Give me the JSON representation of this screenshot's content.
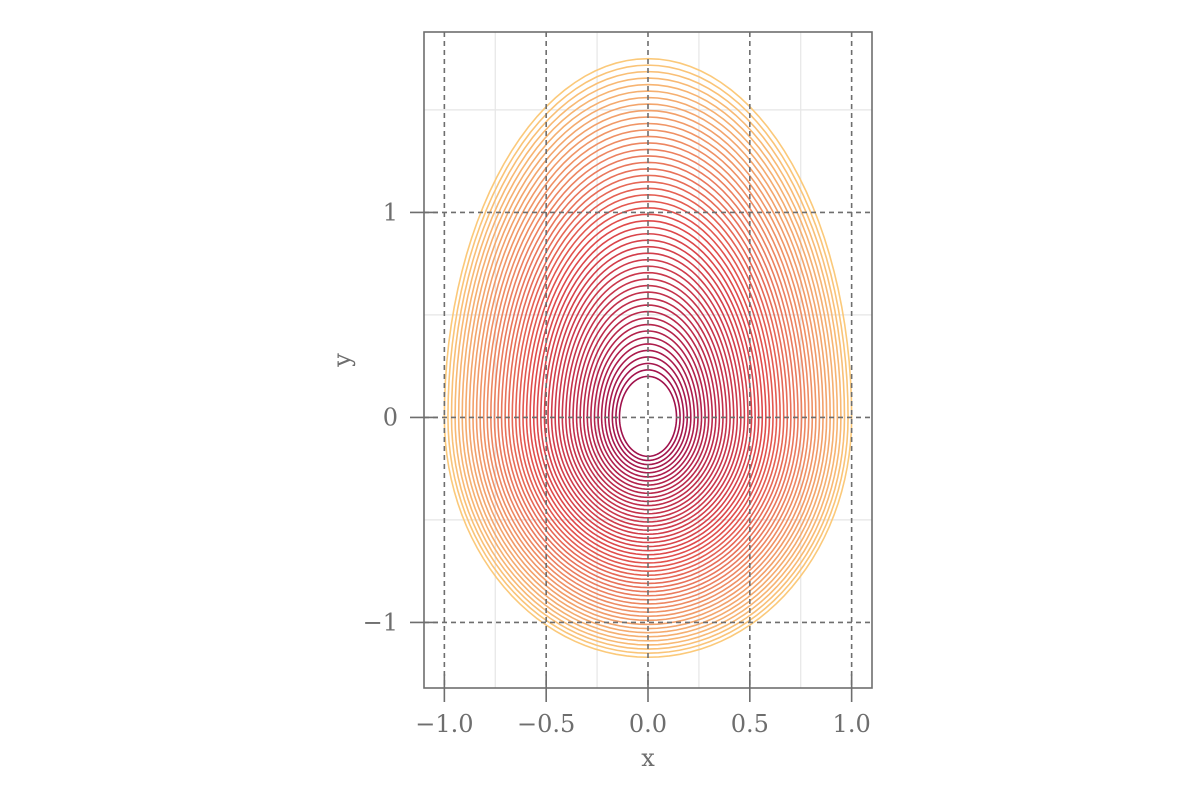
{
  "chart_data": {
    "type": "contour",
    "title": "",
    "xlabel": "x",
    "ylabel": "y",
    "xlim": [
      -1.1,
      1.1
    ],
    "ylim": [
      -1.32,
      1.88
    ],
    "xticks": [
      -1.0,
      -0.5,
      0.0,
      0.5,
      1.0
    ],
    "xtick_labels": [
      "−1.0",
      "−0.5",
      "0.0",
      "0.5",
      "1.0"
    ],
    "yticks": [
      -1,
      0,
      1
    ],
    "ytick_labels": [
      "−1",
      "0",
      "1"
    ],
    "minor_xticks": [
      -0.75,
      -0.25,
      0.25,
      0.75
    ],
    "minor_yticks": [
      -0.5,
      0.5,
      1.5
    ],
    "grid": true,
    "contours": {
      "count": 50,
      "center": [
        0.0,
        0.0
      ],
      "innermost": {
        "half_width": 0.14,
        "top": 0.2,
        "bottom": -0.19
      },
      "outermost": {
        "half_width": 1.0,
        "top": 1.75,
        "bottom": -1.17
      },
      "colors": {
        "inner": "#a0124c",
        "middle": "#e04a4a",
        "outer": "#fbc97a"
      }
    }
  },
  "colors": {
    "frame": "#6e6e6e",
    "major_grid": "#6e6e6e",
    "minor_grid": "#e6e6e6",
    "text": "#6e6e6e"
  }
}
